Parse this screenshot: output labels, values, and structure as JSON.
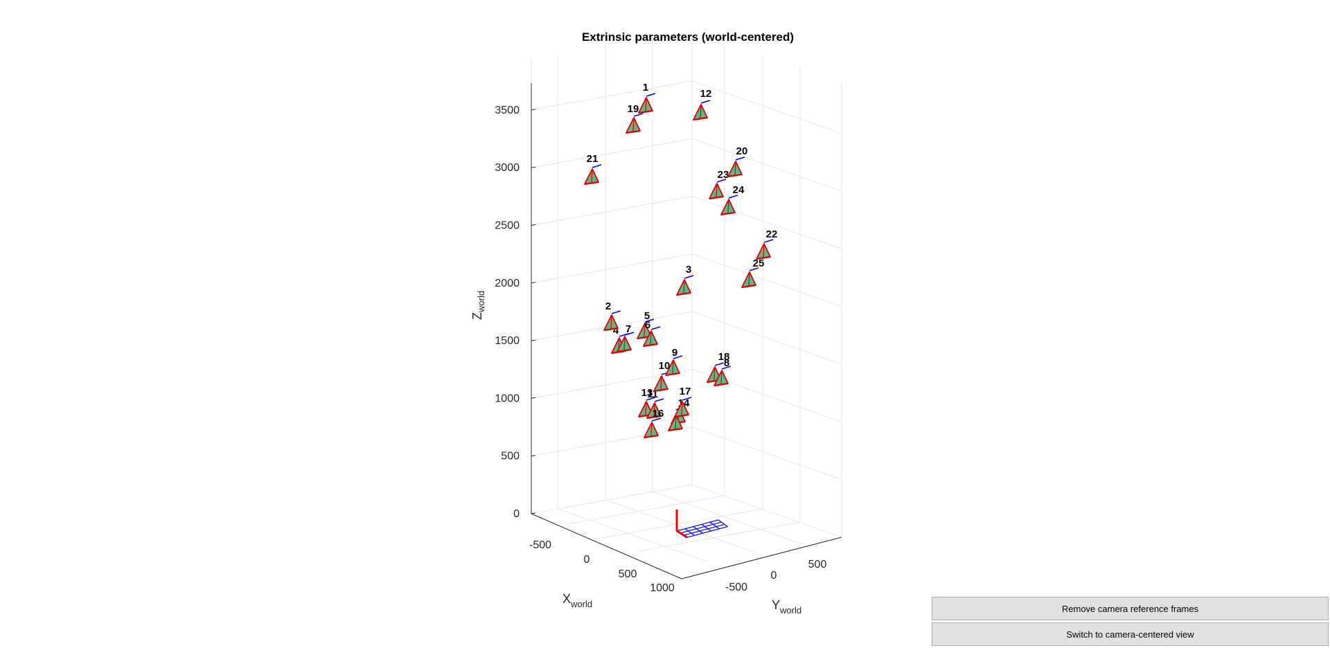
{
  "chart_data": {
    "type": "3d-scatter",
    "title": "Extrinsic parameters (world-centered)",
    "xlabel": "X",
    "xlabel_sub": "world",
    "ylabel": "Y",
    "ylabel_sub": "world",
    "zlabel": "Z",
    "zlabel_sub": "world",
    "x_ticks": [
      "-500",
      "0",
      "500",
      "1000"
    ],
    "y_ticks": [
      "-500",
      "0",
      "500"
    ],
    "z_ticks": [
      "0",
      "500",
      "1000",
      "1500",
      "2000",
      "2500",
      "3000",
      "3500"
    ],
    "grid": true,
    "colors": {
      "frustum_fill": "#5ab88a",
      "frustum_edge": "#e00000",
      "camera_axis": "#0000ff",
      "world_axis": "#ff0000",
      "checkerboard": "#0000ff"
    },
    "cameras": [
      {
        "id": "1",
        "label": "1"
      },
      {
        "id": "2",
        "label": "2"
      },
      {
        "id": "3",
        "label": "3"
      },
      {
        "id": "4",
        "label": "4"
      },
      {
        "id": "5",
        "label": "5"
      },
      {
        "id": "6",
        "label": "6"
      },
      {
        "id": "7",
        "label": "7"
      },
      {
        "id": "8",
        "label": "8"
      },
      {
        "id": "9",
        "label": "9"
      },
      {
        "id": "10",
        "label": "10"
      },
      {
        "id": "11",
        "label": "11"
      },
      {
        "id": "12",
        "label": "12"
      },
      {
        "id": "13",
        "label": "13"
      },
      {
        "id": "14",
        "label": "14"
      },
      {
        "id": "15",
        "label": "15"
      },
      {
        "id": "16",
        "label": "16"
      },
      {
        "id": "17",
        "label": "17"
      },
      {
        "id": "18",
        "label": "18"
      },
      {
        "id": "19",
        "label": "19"
      },
      {
        "id": "20",
        "label": "20"
      },
      {
        "id": "21",
        "label": "21"
      },
      {
        "id": "22",
        "label": "22"
      },
      {
        "id": "23",
        "label": "23"
      },
      {
        "id": "24",
        "label": "24"
      },
      {
        "id": "25",
        "label": "25"
      }
    ]
  },
  "buttons": {
    "remove_frames": "Remove camera reference frames",
    "switch_view": "Switch to camera-centered view"
  }
}
